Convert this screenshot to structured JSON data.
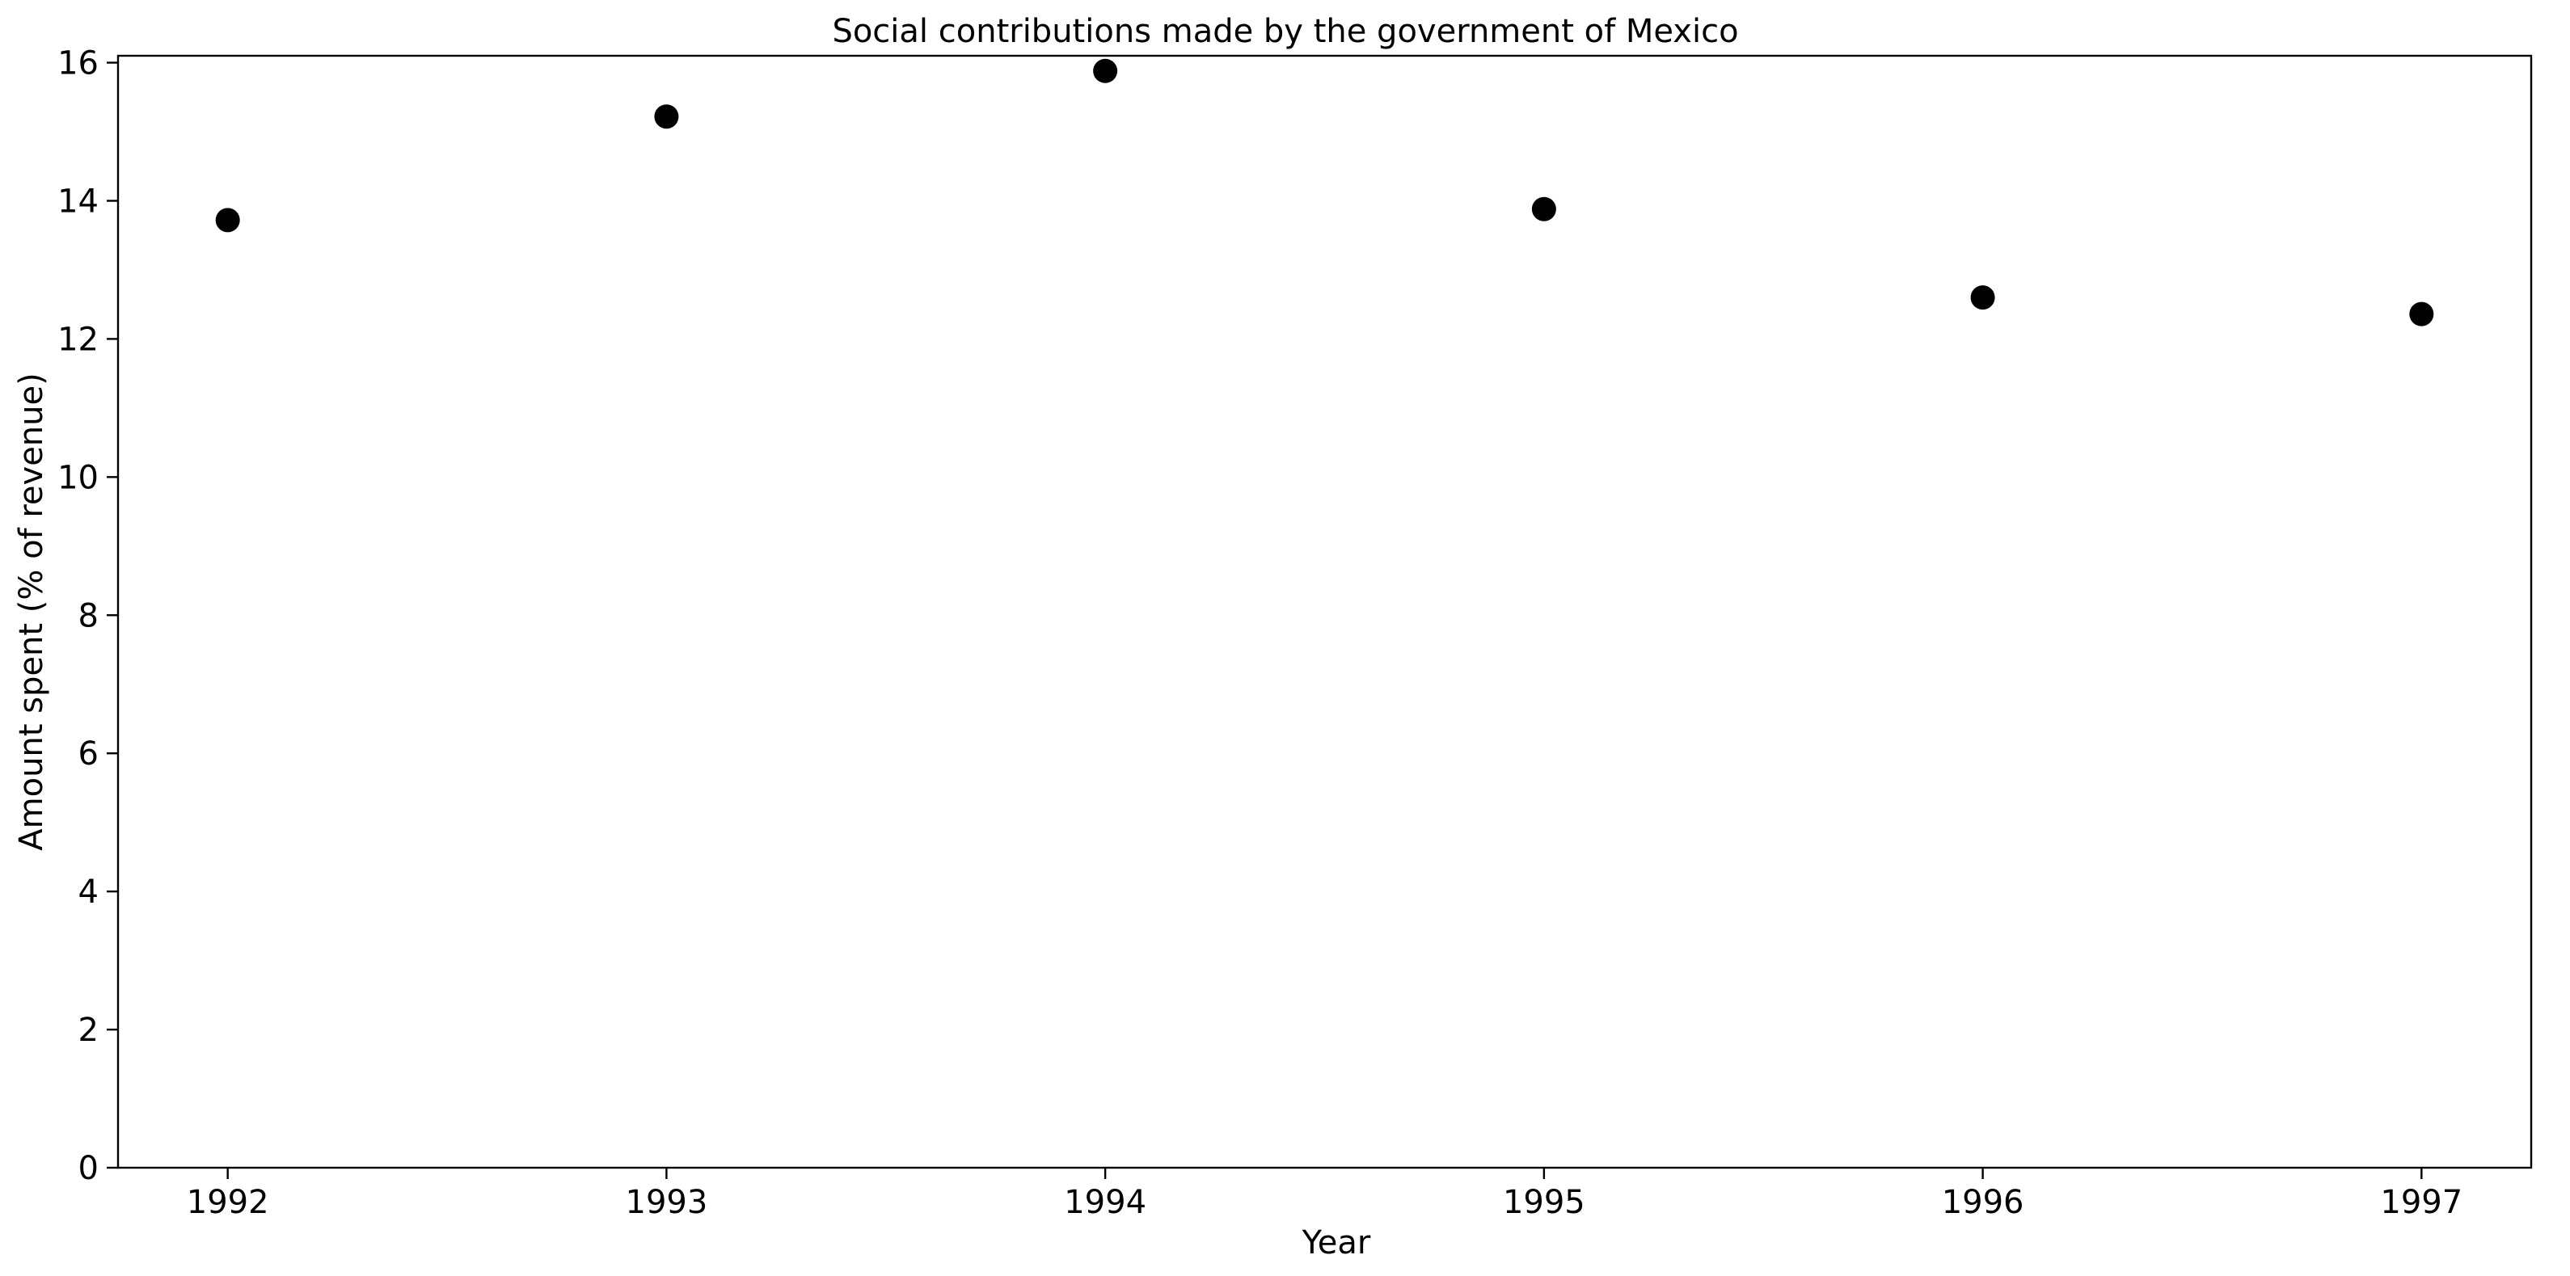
{
  "chart_data": {
    "type": "scatter",
    "title": "Social contributions made by the government of Mexico",
    "xlabel": "Year",
    "ylabel": "Amount spent (% of revenue)",
    "x": [
      1992,
      1993,
      1994,
      1995,
      1996,
      1997
    ],
    "y": [
      13.72,
      15.22,
      15.88,
      13.88,
      12.6,
      12.36
    ],
    "xticks": [
      "1992",
      "1993",
      "1994",
      "1995",
      "1996",
      "1997"
    ],
    "yticks": [
      "0",
      "2",
      "4",
      "6",
      "8",
      "10",
      "12",
      "14",
      "16"
    ],
    "xlim": [
      1991.75,
      1997.25
    ],
    "ylim": [
      0,
      16.1
    ],
    "grid": false,
    "legend": "none",
    "marker_color": "#000000"
  }
}
